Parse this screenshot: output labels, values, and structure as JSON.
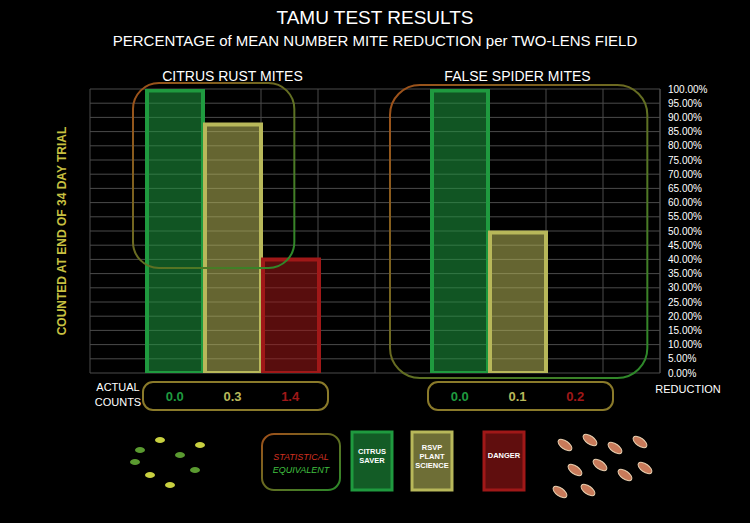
{
  "chart_data": {
    "type": "bar",
    "title": "TAMU TEST RESULTS",
    "subtitle": "PERCENTAGE of MEAN NUMBER MITE REDUCTION per TWO-LENS FIELD",
    "categories": [
      "CITRUS RUST MITES",
      "FALSE SPIDER MITES"
    ],
    "series": [
      {
        "name": "CITRUS SAVER",
        "color": "#1f9a3f",
        "values": [
          99.5,
          99.5
        ],
        "counts": [
          0.0,
          0.0
        ]
      },
      {
        "name": "RSVP PLANT SCIENCE",
        "color": "#b8b85a",
        "values": [
          87.5,
          49.5
        ],
        "counts": [
          0.3,
          0.1
        ]
      },
      {
        "name": "DANGER",
        "color": "#a01818",
        "values": [
          40,
          null
        ],
        "counts": [
          1.4,
          0.2
        ]
      }
    ],
    "ylim": [
      0,
      100
    ],
    "yticks": [
      {
        "value": 0,
        "label": "0.00%"
      },
      {
        "value": 5,
        "label": "5.00%"
      },
      {
        "value": 10,
        "label": "10.00%"
      },
      {
        "value": 15,
        "label": "15.00%"
      },
      {
        "value": 20,
        "label": "20.00%"
      },
      {
        "value": 25,
        "label": "25.00%"
      },
      {
        "value": 30,
        "label": "30.00%"
      },
      {
        "value": 35,
        "label": "35.00%"
      },
      {
        "value": 40,
        "label": "40.00%"
      },
      {
        "value": 45,
        "label": "45.00%"
      },
      {
        "value": 50,
        "label": "50.00%"
      },
      {
        "value": 55,
        "label": "55.00%"
      },
      {
        "value": 60,
        "label": "60.00%"
      },
      {
        "value": 65,
        "label": "65.00%"
      },
      {
        "value": 70,
        "label": "70.00%"
      },
      {
        "value": 75,
        "label": "75.00%"
      },
      {
        "value": 80,
        "label": "80.00%"
      },
      {
        "value": 85,
        "label": "85.00%"
      },
      {
        "value": 90,
        "label": "90.00%"
      },
      {
        "value": 95,
        "label": "95.00%"
      },
      {
        "value": 100,
        "label": "100.00%"
      }
    ],
    "grid": true,
    "y_label": "REDUCTION",
    "counts_label": "ACTUAL COUNTS",
    "side_label": "COUNTED AT END OF 34 DAY TRIAL",
    "equivalence_label": "STATISTICAL EQUIVALENT"
  }
}
